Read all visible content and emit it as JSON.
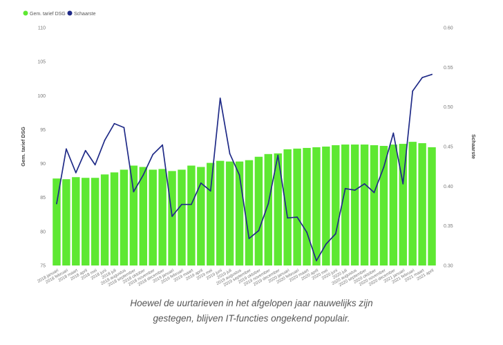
{
  "chart_data": {
    "type": "bar+line",
    "categories": [
      "2018 januari",
      "2018 februari",
      "2018 maart",
      "2018 april",
      "2018 mei",
      "2018 juni",
      "2018 juli",
      "2018 augustus",
      "2018 september",
      "2018 oktober",
      "2018 november",
      "2018 december",
      "2019 januari",
      "2019 februari",
      "2019 maart",
      "2019 april",
      "2019 mei",
      "2019 juni",
      "2019 juli",
      "2019 augustus",
      "2019 september",
      "2019 oktober",
      "2019 november",
      "2019 december",
      "2020 januari",
      "2020 februari",
      "2020 maart",
      "2020 april",
      "2020 mei",
      "2020 juni",
      "2020 juli",
      "2020 augustus",
      "2020 september",
      "2020 oktober",
      "2020 november",
      "2020 december",
      "2021 januari",
      "2021 februari",
      "2021 maart",
      "2021 april"
    ],
    "series": [
      {
        "name": "Gem. tarief DSG",
        "type": "bar",
        "axis": "left",
        "color": "#5ee832",
        "values": [
          87.8,
          87.7,
          88.0,
          87.9,
          87.9,
          88.4,
          88.7,
          89.1,
          89.7,
          89.5,
          89.1,
          89.2,
          88.9,
          89.1,
          89.7,
          89.5,
          90.1,
          90.4,
          90.3,
          90.3,
          90.5,
          91.0,
          91.4,
          91.5,
          92.1,
          92.2,
          92.3,
          92.4,
          92.5,
          92.7,
          92.8,
          92.8,
          92.8,
          92.7,
          92.6,
          92.8,
          92.9,
          93.2,
          93.0,
          92.4
        ]
      },
      {
        "name": "Schaarste",
        "type": "line",
        "axis": "right",
        "color": "#1f2a87",
        "values": [
          0.378,
          0.447,
          0.417,
          0.445,
          0.427,
          0.458,
          0.479,
          0.474,
          0.393,
          0.414,
          0.44,
          0.452,
          0.362,
          0.377,
          0.377,
          0.404,
          0.394,
          0.511,
          0.441,
          0.414,
          0.334,
          0.344,
          0.378,
          0.439,
          0.36,
          0.361,
          0.342,
          0.306,
          0.327,
          0.34,
          0.397,
          0.395,
          0.403,
          0.392,
          0.424,
          0.467,
          0.403,
          0.52,
          0.537,
          0.541
        ]
      }
    ],
    "ylabel": "Gem. tarief DSG",
    "y2label": "Schaarste",
    "ylim": [
      75,
      110
    ],
    "y2lim": [
      0.3,
      0.6
    ],
    "yticks": [
      "75",
      "80",
      "85",
      "90",
      "95",
      "100",
      "105",
      "110"
    ],
    "y2ticks": [
      "0.30",
      "0.35",
      "0.40",
      "0.45",
      "0.50",
      "0.55",
      "0.60"
    ],
    "legend": [
      "Gem. tarief DSG",
      "Schaarste"
    ],
    "legend_position": "top-left",
    "grid": false
  },
  "caption": {
    "line1": "Hoewel de uurtarieven in het afgelopen jaar nauwelijks zijn",
    "line2": "gestegen, blijven IT-functies ongekend populair."
  }
}
